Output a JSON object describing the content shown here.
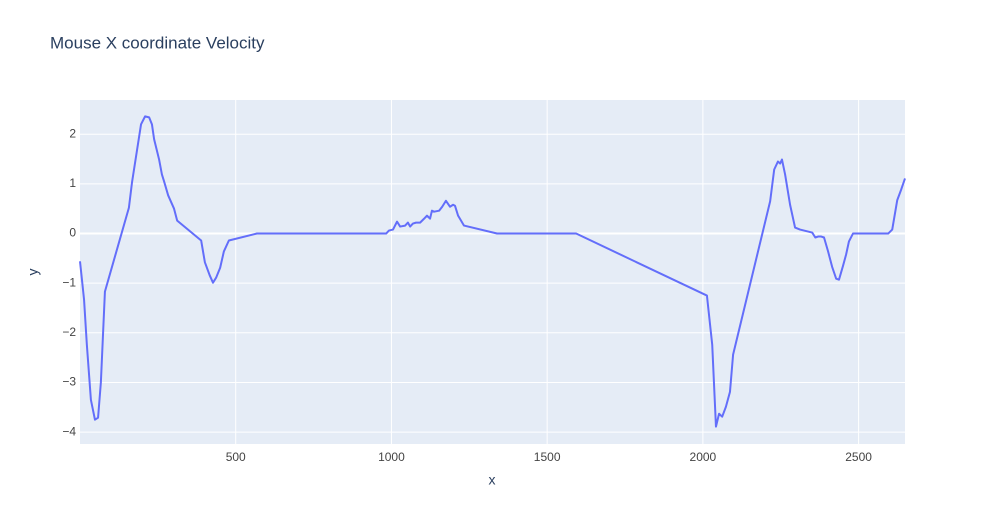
{
  "chart_data": {
    "type": "line",
    "title": "Mouse X coordinate Velocity",
    "x_label": "x",
    "y_label": "y",
    "x": [
      0,
      13,
      22,
      35,
      48,
      58,
      67,
      80,
      157,
      167,
      196,
      209,
      222,
      231,
      238,
      254,
      263,
      270,
      283,
      302,
      312,
      389,
      401,
      417,
      427,
      437,
      450,
      462,
      478,
      568,
      983,
      992,
      1005,
      1018,
      1028,
      1044,
      1053,
      1060,
      1069,
      1079,
      1092,
      1105,
      1114,
      1124,
      1130,
      1137,
      1153,
      1163,
      1175,
      1188,
      1198,
      1204,
      1214,
      1233,
      1339,
      1593,
      2013,
      2030,
      2042,
      2052,
      2062,
      2074,
      2087,
      2097,
      2216,
      2229,
      2241,
      2248,
      2254,
      2264,
      2280,
      2296,
      2312,
      2351,
      2361,
      2370,
      2380,
      2389,
      2402,
      2415,
      2428,
      2437,
      2450,
      2460,
      2469,
      2482,
      2595,
      2608,
      2624,
      2637,
      2649
    ],
    "series": [
      {
        "name": "y",
        "color": "#636efa",
        "values": [
          -0.56,
          -1.33,
          -2.24,
          -3.35,
          -3.75,
          -3.71,
          -3.0,
          -1.17,
          0.52,
          1.03,
          2.2,
          2.36,
          2.34,
          2.2,
          1.9,
          1.49,
          1.19,
          1.05,
          0.77,
          0.5,
          0.26,
          -0.14,
          -0.58,
          -0.85,
          -0.99,
          -0.89,
          -0.69,
          -0.36,
          -0.14,
          0,
          0,
          0.06,
          0.08,
          0.24,
          0.14,
          0.16,
          0.22,
          0.14,
          0.2,
          0.22,
          0.22,
          0.3,
          0.36,
          0.3,
          0.46,
          0.44,
          0.46,
          0.54,
          0.66,
          0.54,
          0.58,
          0.56,
          0.36,
          0.16,
          0,
          0,
          -1.25,
          -2.24,
          -3.89,
          -3.63,
          -3.69,
          -3.49,
          -3.19,
          -2.44,
          0.65,
          1.29,
          1.45,
          1.41,
          1.49,
          1.19,
          0.58,
          0.12,
          0.08,
          0.02,
          -0.08,
          -0.06,
          -0.06,
          -0.08,
          -0.36,
          -0.67,
          -0.91,
          -0.93,
          -0.65,
          -0.42,
          -0.16,
          0,
          0,
          0.08,
          0.67,
          0.89,
          1.11
        ]
      }
    ],
    "xlim": [
      0,
      2649
    ],
    "ylim": [
      -4.24,
      2.69
    ],
    "xticks": [
      500,
      1000,
      1500,
      2000,
      2500
    ],
    "yticks": [
      2,
      1,
      0,
      {
        "value": -1,
        "label": "−1"
      },
      {
        "value": -2,
        "label": "−2"
      },
      {
        "value": -3,
        "label": "−3"
      },
      {
        "value": -4,
        "label": "−4"
      }
    ],
    "grid": true
  }
}
